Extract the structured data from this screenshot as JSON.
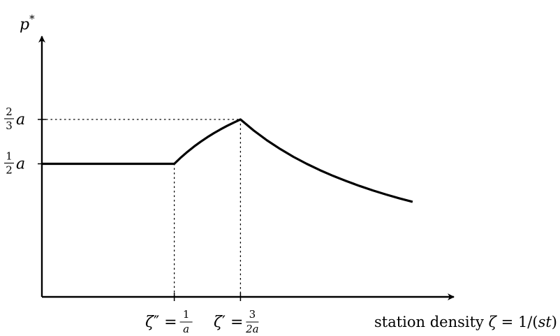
{
  "chart_data": {
    "type": "line",
    "title": "",
    "ylabel": {
      "base": "p",
      "sup": "*"
    },
    "xlabel": {
      "text": "station density ",
      "zeta": "ζ",
      "rest": " = 1/(",
      "st": "st",
      "close": ")"
    },
    "a": 1,
    "xlim": [
      0,
      2.8
    ],
    "ylim": [
      0,
      0.85
    ],
    "x_ticks": [
      {
        "x": 1,
        "label": {
          "sym": "ζ",
          "prime": "″",
          "eq": " = ",
          "num": "1",
          "den": "a"
        }
      },
      {
        "x": 1.5,
        "label": {
          "sym": "ζ",
          "prime": "′",
          "eq": " = ",
          "num": "3",
          "den": "2a"
        }
      }
    ],
    "y_ticks": [
      {
        "y": 0.5,
        "label": {
          "num": "1",
          "den": "2",
          "var": "a"
        }
      },
      {
        "y": 0.6667,
        "label": {
          "num": "2",
          "den": "3",
          "var": "a"
        }
      }
    ],
    "series": [
      {
        "points": [
          [
            0,
            0.5
          ],
          [
            1.0,
            0.5
          ],
          [
            1.05,
            0.5238
          ],
          [
            1.1,
            0.5455
          ],
          [
            1.15,
            0.5652
          ],
          [
            1.2,
            0.5833
          ],
          [
            1.25,
            0.6
          ],
          [
            1.3,
            0.6154
          ],
          [
            1.35,
            0.6296
          ],
          [
            1.4,
            0.6429
          ],
          [
            1.45,
            0.6552
          ],
          [
            1.5,
            0.6667
          ],
          [
            1.6,
            0.625
          ],
          [
            1.7,
            0.5882
          ],
          [
            1.8,
            0.5556
          ],
          [
            1.9,
            0.5263
          ],
          [
            2.0,
            0.5
          ],
          [
            2.1,
            0.4762
          ],
          [
            2.2,
            0.4545
          ],
          [
            2.3,
            0.4348
          ],
          [
            2.4,
            0.4167
          ],
          [
            2.5,
            0.4
          ],
          [
            2.6,
            0.3846
          ],
          [
            2.7,
            0.3704
          ],
          [
            2.8,
            0.3571
          ]
        ]
      }
    ],
    "guides": "dotted drop lines from the curve's corners to the axes",
    "grid": false,
    "legend": "none"
  }
}
